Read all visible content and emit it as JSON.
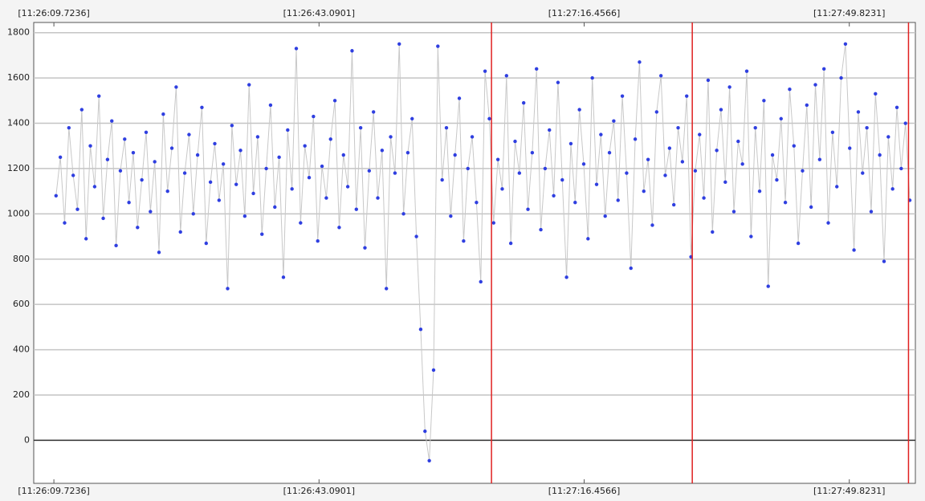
{
  "chart_data": {
    "type": "line",
    "values": [
      1080,
      1250,
      960,
      1380,
      1170,
      1020,
      1460,
      890,
      1300,
      1120,
      1520,
      980,
      1240,
      1410,
      860,
      1190,
      1330,
      1050,
      1270,
      940,
      1150,
      1360,
      1010,
      1230,
      830,
      1440,
      1100,
      1290,
      1560,
      920,
      1180,
      1350,
      1000,
      1260,
      1470,
      870,
      1140,
      1310,
      1060,
      1220,
      670,
      1390,
      1130,
      1280,
      990,
      1570,
      1090,
      1340,
      910,
      1200,
      1480,
      1030,
      1250,
      720,
      1370,
      1110,
      1730,
      960,
      1300,
      1160,
      1430,
      880,
      1210,
      1070,
      1330,
      1500,
      940,
      1260,
      1120,
      1720,
      1020,
      1380,
      850,
      1190,
      1450,
      1070,
      1280,
      670,
      1340,
      1180,
      1750,
      1000,
      1270,
      1420,
      900,
      490,
      40,
      -90,
      310,
      1740,
      1150,
      1380,
      990,
      1260,
      1510,
      880,
      1200,
      1340,
      1050,
      700,
      1630,
      1420,
      960,
      1240,
      1110,
      1610,
      870,
      1320,
      1180,
      1490,
      1020,
      1270,
      1640,
      930,
      1200,
      1370,
      1080,
      1580,
      1150,
      720,
      1310,
      1050,
      1460,
      1220,
      890,
      1600,
      1130,
      1350,
      990,
      1270,
      1410,
      1060,
      1520,
      1180,
      760,
      1330,
      1670,
      1100,
      1240,
      950,
      1450,
      1610,
      1170,
      1290,
      1040,
      1380,
      1230,
      1520,
      810,
      1190,
      1350,
      1070,
      1590,
      920,
      1280,
      1460,
      1140,
      1560,
      1010,
      1320,
      1220,
      1630,
      900,
      1380,
      1100,
      1500,
      680,
      1260,
      1150,
      1420,
      1050,
      1550,
      1300,
      870,
      1190,
      1480,
      1030,
      1570,
      1240,
      1640,
      960,
      1360,
      1120,
      1600,
      1750,
      1290,
      840,
      1450,
      1180,
      1380,
      1010,
      1530,
      1260,
      790,
      1340,
      1110,
      1470,
      1200,
      1400,
      1060
    ],
    "color": "#2f3fe0",
    "line_color": "#c8c8c8",
    "xlim": [
      -5.2,
      200.3
    ],
    "xticks": [
      {
        "value": -0.5,
        "label": "[11:26:09.7236]"
      },
      {
        "value": 61.3,
        "label": "[11:26:43.0901]"
      },
      {
        "value": 123.1,
        "label": "[11:27:16.4566]"
      },
      {
        "value": 184.9,
        "label": "[11:27:49.8231]"
      }
    ],
    "ylim": [
      -190,
      1845
    ],
    "yticks": [
      0,
      200,
      400,
      600,
      800,
      1000,
      1200,
      1400,
      1600,
      1800
    ],
    "grid": true,
    "baseline": 0,
    "markers": [
      101.5,
      148.3,
      198.7
    ],
    "marker_color": "#e02020"
  }
}
